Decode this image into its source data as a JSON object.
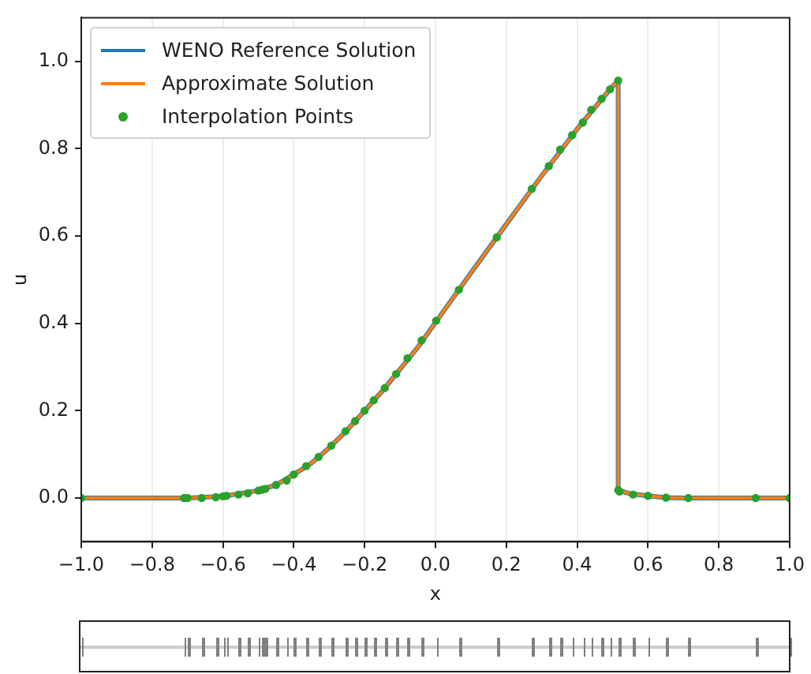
{
  "chart_data": {
    "type": "line",
    "xlabel": "x",
    "ylabel": "u",
    "xlim": [
      -1,
      1
    ],
    "xticks": [
      {
        "value": -1,
        "label": "−1.0"
      },
      {
        "value": -0.8,
        "label": "−0.8"
      },
      {
        "value": -0.6,
        "label": "−0.6"
      },
      {
        "value": -0.4,
        "label": "−0.4"
      },
      {
        "value": -0.2,
        "label": "−0.2"
      },
      {
        "value": 0,
        "label": "0.0"
      },
      {
        "value": 0.2,
        "label": "0.2"
      },
      {
        "value": 0.4,
        "label": "0.4"
      },
      {
        "value": 0.6,
        "label": "0.6"
      },
      {
        "value": 0.8,
        "label": "0.8"
      },
      {
        "value": 1,
        "label": "1.0"
      }
    ],
    "ylim": [
      -0.1,
      1.1
    ],
    "yticks": [
      {
        "value": 0,
        "label": "0.0"
      },
      0.2,
      0.4,
      0.6,
      0.8,
      {
        "value": 1,
        "label": "1.0"
      }
    ],
    "grid": "x",
    "legend": "top left",
    "series": [
      {
        "name": "WENO Reference Solution",
        "color": "#1f77b4",
        "marker": "none",
        "x": [
          -1,
          -0.7,
          -0.6,
          -0.5,
          -0.45,
          -0.4,
          -0.35,
          -0.3,
          -0.25,
          -0.2,
          -0.15,
          -0.1,
          -0.05,
          0,
          0.1,
          0.2,
          0.3,
          0.4,
          0.5,
          0.516,
          0.516,
          0.55,
          0.6,
          0.65,
          0.7,
          1
        ],
        "values": [
          0,
          0,
          0.004,
          0.017,
          0.03,
          0.054,
          0.08,
          0.115,
          0.155,
          0.2,
          0.245,
          0.295,
          0.345,
          0.402,
          0.515,
          0.627,
          0.738,
          0.845,
          0.943,
          0.956,
          0.018,
          0.01,
          0.005,
          0.001,
          0,
          0
        ]
      },
      {
        "name": "Approximate Solution",
        "color": "#ff7f0e",
        "marker": "none",
        "x": [
          -1,
          -0.7,
          -0.6,
          -0.5,
          -0.45,
          -0.4,
          -0.35,
          -0.3,
          -0.25,
          -0.2,
          -0.15,
          -0.1,
          -0.05,
          0,
          0.1,
          0.2,
          0.3,
          0.4,
          0.5,
          0.516,
          0.516,
          0.55,
          0.6,
          0.65,
          0.7,
          1
        ],
        "values": [
          0,
          0,
          0.004,
          0.017,
          0.03,
          0.054,
          0.08,
          0.115,
          0.155,
          0.2,
          0.245,
          0.295,
          0.345,
          0.402,
          0.515,
          0.627,
          0.738,
          0.845,
          0.943,
          0.956,
          0.018,
          0.01,
          0.005,
          0.001,
          0,
          0
        ]
      },
      {
        "name": "Interpolation Points",
        "type": "scatter",
        "color": "#2ca02c",
        "marker": "circle",
        "x": [
          -1,
          -0.71,
          -0.7,
          -0.66,
          -0.62,
          -0.6,
          -0.59,
          -0.556,
          -0.53,
          -0.5,
          -0.49,
          -0.48,
          -0.45,
          -0.42,
          -0.4,
          -0.365,
          -0.33,
          -0.294,
          -0.254,
          -0.227,
          -0.2,
          -0.174,
          -0.143,
          -0.111,
          -0.079,
          -0.039,
          0.002,
          0.066,
          0.173,
          0.272,
          0.32,
          0.352,
          0.386,
          0.416,
          0.44,
          0.469,
          0.493,
          0.516,
          0.516,
          0.52,
          0.558,
          0.6,
          0.651,
          0.714,
          0.904,
          1
        ],
        "values": [
          0,
          0,
          0,
          0,
          0.002,
          0.004,
          0.005,
          0.008,
          0.011,
          0.017,
          0.019,
          0.021,
          0.03,
          0.04,
          0.054,
          0.073,
          0.094,
          0.12,
          0.153,
          0.176,
          0.2,
          0.224,
          0.252,
          0.284,
          0.32,
          0.361,
          0.406,
          0.477,
          0.597,
          0.708,
          0.76,
          0.798,
          0.831,
          0.86,
          0.889,
          0.914,
          0.936,
          0.956,
          0.018,
          0.015,
          0.008,
          0.005,
          0.001,
          0,
          0,
          0
        ]
      }
    ]
  }
}
